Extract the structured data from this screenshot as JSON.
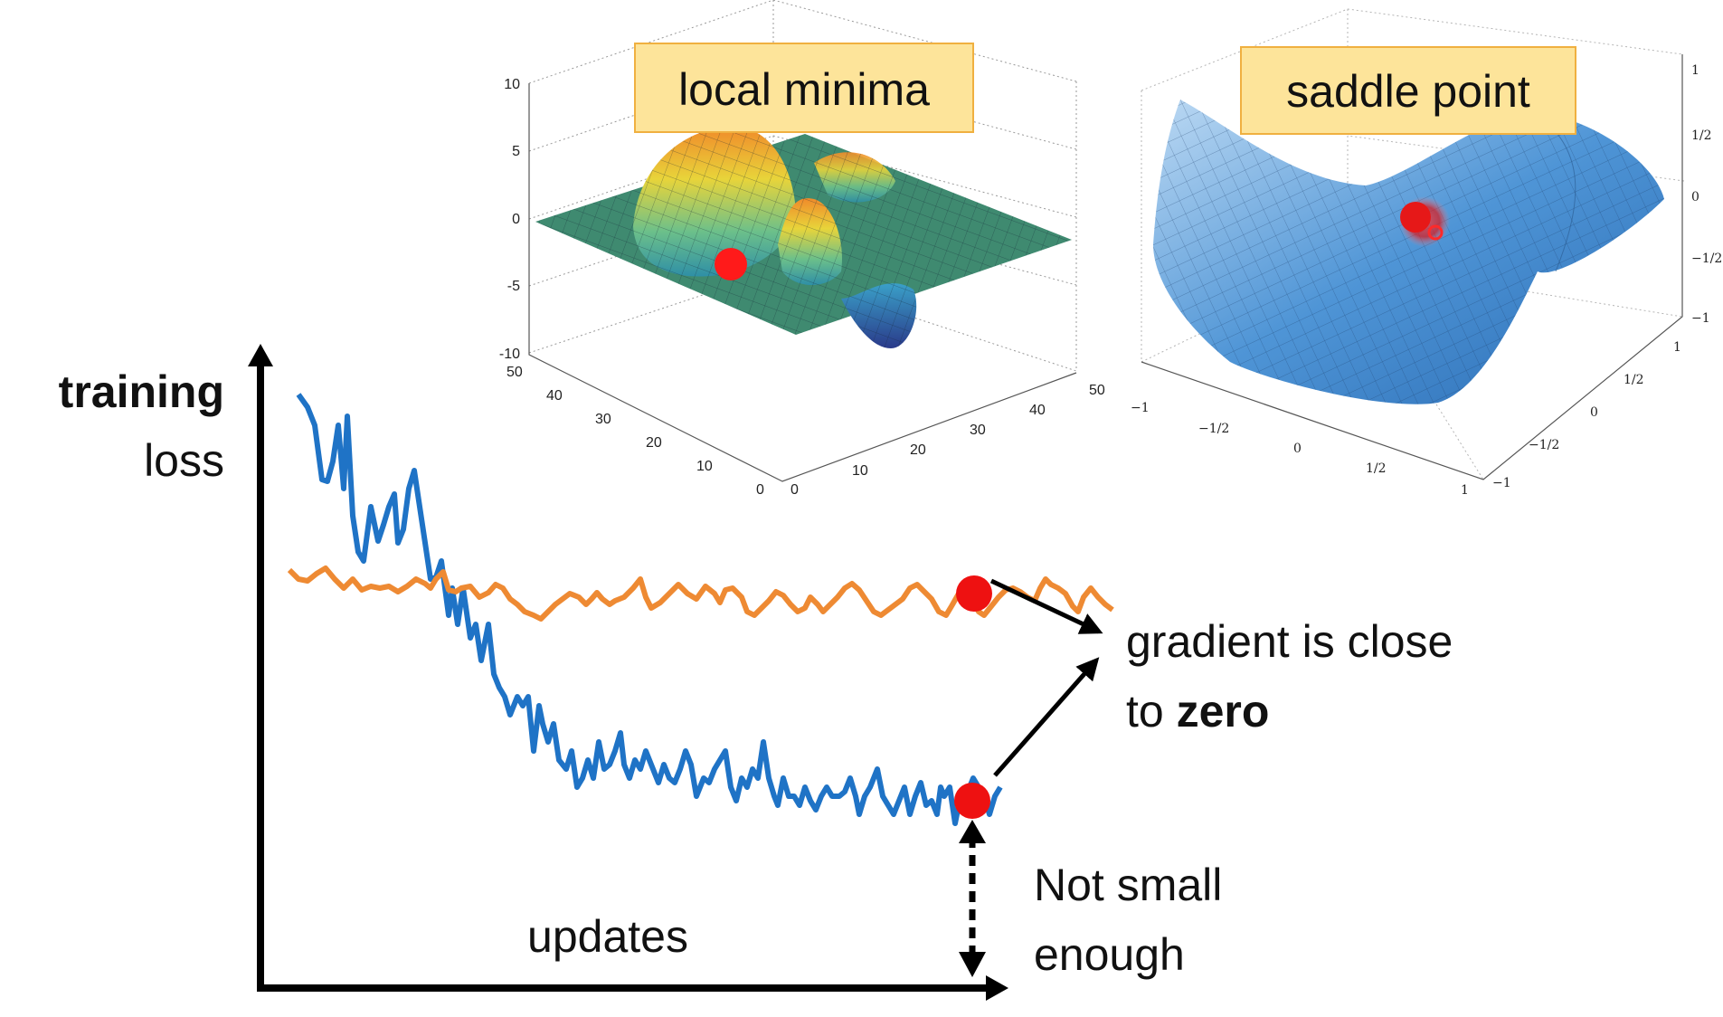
{
  "axes": {
    "y_label_bold": "training",
    "y_label": "loss",
    "x_label": "updates"
  },
  "callouts": {
    "local_minima": "local minima",
    "saddle_point": "saddle point",
    "gradient_line1": "gradient is close",
    "gradient_line2_prefix": "to",
    "gradient_line2_bold": "zero",
    "not_small_line1": "Not small",
    "not_small_line2": "enough"
  },
  "local_minima_plot": {
    "z_ticks": [
      "10",
      "5",
      "0",
      "-5",
      "-10"
    ],
    "y_ticks": [
      "50",
      "40",
      "30",
      "20",
      "10",
      "0"
    ],
    "x_ticks": [
      "0",
      "10",
      "20",
      "30",
      "40",
      "50"
    ]
  },
  "saddle_plot": {
    "z_ticks": [
      "1",
      "1/2",
      "0",
      "−1/2",
      "−1"
    ],
    "x_ticks": [
      "−1",
      "−1/2",
      "0",
      "1/2",
      "1"
    ],
    "y_ticks": [
      "1",
      "1/2",
      "0",
      "−1/2",
      "−1"
    ]
  },
  "colors": {
    "blue_curve": "#1f73c6",
    "orange_curve": "#ee8a33",
    "marker": "#ee1111",
    "label_box": "#fde49a",
    "label_box_border": "#f0b040"
  }
}
